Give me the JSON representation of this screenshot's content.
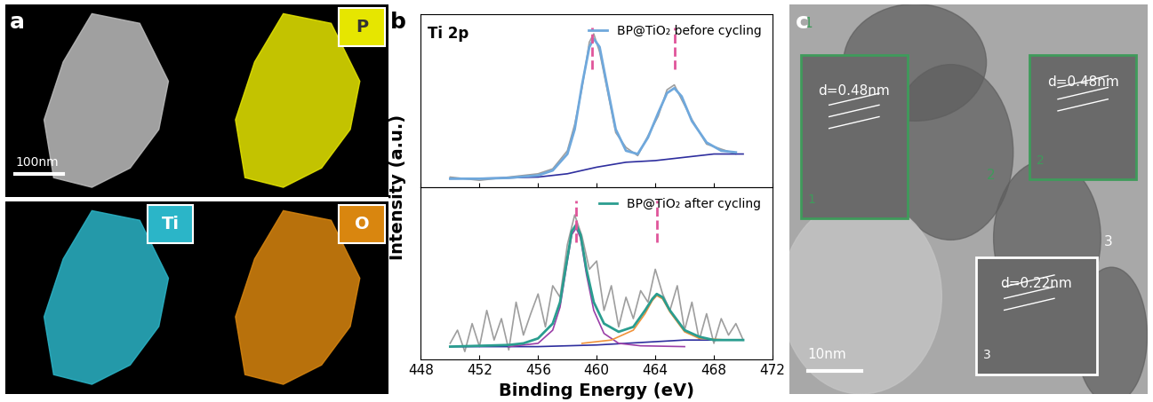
{
  "panel_labels": [
    "a",
    "b",
    "c"
  ],
  "panel_a": {
    "scale_bar": "100nm",
    "maps": [
      {
        "element": "P",
        "color": "#e6e600"
      },
      {
        "element": "Ti",
        "color": "#2bb5c8"
      },
      {
        "element": "O",
        "color": "#d9860f"
      }
    ]
  },
  "y_label": "Intensity (a.u.)",
  "chart_data": [
    {
      "type": "line",
      "annotations": [
        "Ti 2p"
      ],
      "xlim": [
        448,
        472
      ],
      "xticks": [
        448,
        452,
        456,
        460,
        464,
        468,
        472
      ],
      "ylim": [
        0,
        1.05
      ],
      "yticks": [],
      "tick_labels": false,
      "legend": "upper right",
      "peak_lines": {
        "values": [
          459.7,
          465.3
        ],
        "color": "#e0559a",
        "line_style": "dashed"
      },
      "series": [
        {
          "color": "#9e9e9e",
          "x": [
            450,
            452,
            454,
            456,
            457,
            458,
            458.5,
            459,
            459.5,
            459.8,
            460.2,
            460.7,
            461.3,
            462,
            462.8,
            463.5,
            464.2,
            464.8,
            465.3,
            465.8,
            466.5,
            467.5,
            468.5,
            469.5
          ],
          "values": [
            0.06,
            0.04,
            0.06,
            0.08,
            0.11,
            0.22,
            0.38,
            0.6,
            0.88,
            0.93,
            0.82,
            0.6,
            0.33,
            0.24,
            0.19,
            0.31,
            0.43,
            0.59,
            0.62,
            0.53,
            0.41,
            0.26,
            0.23,
            0.2
          ]
        },
        {
          "color": "#2e2e9e",
          "x": [
            450,
            454,
            456,
            458,
            460,
            462,
            464,
            466,
            468,
            470
          ],
          "values": [
            0.05,
            0.055,
            0.06,
            0.08,
            0.12,
            0.15,
            0.16,
            0.18,
            0.2,
            0.2
          ]
        },
        {
          "name": "BP@TiO₂ before cycling",
          "color": "#6fa8dc",
          "x": [
            450,
            452,
            454,
            456,
            457,
            458,
            458.5,
            459,
            459.5,
            459.8,
            460.2,
            460.7,
            461.3,
            462,
            462.8,
            463.5,
            464.2,
            464.8,
            465.3,
            465.8,
            466.5,
            467.5,
            468.5,
            469.5
          ],
          "values": [
            0.05,
            0.05,
            0.055,
            0.07,
            0.1,
            0.2,
            0.35,
            0.62,
            0.85,
            0.9,
            0.85,
            0.62,
            0.35,
            0.22,
            0.2,
            0.3,
            0.45,
            0.57,
            0.6,
            0.55,
            0.4,
            0.27,
            0.22,
            0.21
          ]
        }
      ]
    },
    {
      "type": "line",
      "x_label": "Binding Energy (eV)",
      "xlim": [
        448,
        472
      ],
      "xticks": [
        448,
        452,
        456,
        460,
        464,
        468,
        472
      ],
      "ylim": [
        0,
        1.05
      ],
      "yticks": [],
      "tick_labels": "x",
      "legend": "upper right",
      "peak_lines": {
        "values": [
          458.6,
          464.1
        ],
        "color": "#e0559a",
        "line_style": "dashed"
      },
      "series": [
        {
          "color": "#9e9e9e",
          "x": [
            450,
            450.5,
            451,
            451.5,
            452,
            452.5,
            453,
            453.5,
            454,
            454.5,
            455,
            455.5,
            456,
            456.5,
            457,
            457.5,
            458,
            458.5,
            459,
            459.5,
            460,
            460.5,
            461,
            461.5,
            462,
            462.5,
            463,
            463.5,
            464,
            464.5,
            465,
            465.5,
            466,
            466.5,
            467,
            467.5,
            468,
            468.5,
            469,
            469.5,
            470
          ],
          "values": [
            0.1,
            0.18,
            0.05,
            0.22,
            0.08,
            0.3,
            0.12,
            0.25,
            0.06,
            0.35,
            0.15,
            0.28,
            0.4,
            0.2,
            0.45,
            0.38,
            0.7,
            0.88,
            0.75,
            0.55,
            0.6,
            0.3,
            0.45,
            0.2,
            0.38,
            0.25,
            0.42,
            0.35,
            0.55,
            0.4,
            0.3,
            0.45,
            0.18,
            0.35,
            0.12,
            0.28,
            0.1,
            0.25,
            0.15,
            0.22,
            0.12
          ]
        },
        {
          "color": "#2e2e9e",
          "x": [
            450,
            456,
            458,
            460,
            462,
            464,
            466,
            470
          ],
          "values": [
            0.08,
            0.08,
            0.085,
            0.09,
            0.1,
            0.11,
            0.12,
            0.12
          ]
        },
        {
          "color": "#9b3fa8",
          "x": [
            454,
            456,
            457,
            457.5,
            458,
            458.3,
            458.6,
            458.9,
            459.3,
            459.8,
            460.5,
            461.5,
            463,
            466
          ],
          "values": [
            0.08,
            0.1,
            0.18,
            0.32,
            0.6,
            0.76,
            0.8,
            0.74,
            0.52,
            0.3,
            0.16,
            0.1,
            0.085,
            0.08
          ]
        },
        {
          "color": "#f0923a",
          "x": [
            459,
            461,
            462.5,
            463.3,
            463.8,
            464.1,
            464.5,
            465,
            466,
            467,
            469
          ],
          "values": [
            0.1,
            0.12,
            0.18,
            0.28,
            0.36,
            0.39,
            0.37,
            0.29,
            0.17,
            0.13,
            0.12
          ]
        },
        {
          "name": "BP@TiO₂ after cycling",
          "color": "#2a9d8f",
          "x": [
            450,
            452,
            454,
            455,
            456,
            457,
            457.5,
            458,
            458.3,
            458.6,
            458.9,
            459.3,
            459.8,
            460.5,
            461.5,
            462.5,
            463.3,
            463.8,
            464.1,
            464.5,
            465,
            466,
            467,
            468,
            470
          ],
          "values": [
            0.08,
            0.085,
            0.09,
            0.1,
            0.13,
            0.22,
            0.35,
            0.62,
            0.78,
            0.82,
            0.76,
            0.55,
            0.35,
            0.22,
            0.17,
            0.2,
            0.3,
            0.37,
            0.4,
            0.38,
            0.3,
            0.18,
            0.14,
            0.12,
            0.12
          ]
        }
      ]
    }
  ],
  "panel_c": {
    "scale_bar": "10nm",
    "insets": [
      {
        "number": "1",
        "spacing": "d=0.48nm"
      },
      {
        "number": "2",
        "spacing": "d=0.48nm"
      },
      {
        "number": "3",
        "spacing": "d=0.22nm"
      }
    ]
  }
}
